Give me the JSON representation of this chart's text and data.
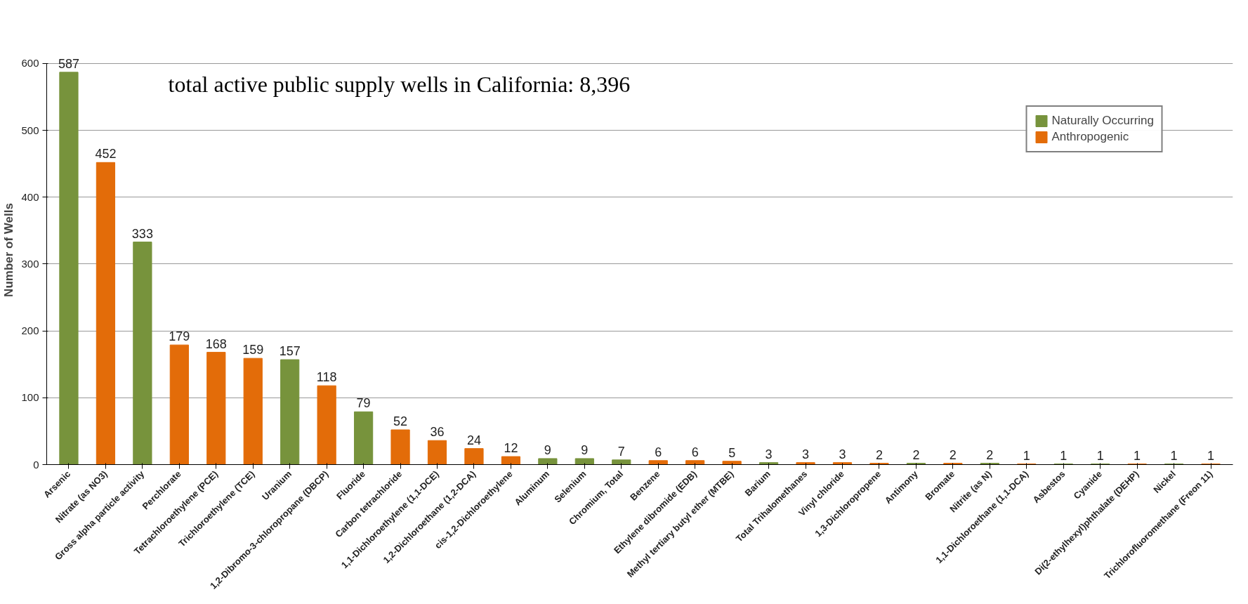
{
  "chart_data": {
    "type": "bar",
    "ylabel": "Number of Wells",
    "annotations": [
      "total active public supply wells in California: 8,396"
    ],
    "categories": [
      "Arsenic",
      "Nitrate (as NO3)",
      "Gross alpha particle activity",
      "Perchlorate",
      "Tetrachloroethylene (PCE)",
      "Trichloroethylene (TCE)",
      "Uranium",
      "1,2-Dibromo-3-chloropropane (DBCP)",
      "Fluoride",
      "Carbon tetrachloride",
      "1,1-Dichloroethylene (1,1-DCE)",
      "1,2-Dichloroethane (1,2-DCA)",
      "cis-1,2-Dichloroethylene",
      "Aluminum",
      "Selenium",
      "Chromium, Total",
      "Benzene",
      "Ethylene dibromide (EDB)",
      "Methyl tertiary butyl ether (MTBE)",
      "Barium",
      "Total Trihalomethanes",
      "Vinyl chloride",
      "1,3-Dichloropropene",
      "Antimony",
      "Bromate",
      "Nitrite (as N)",
      "1,1-Dichloroethane (1,1-DCA)",
      "Asbestos",
      "Cyanide",
      "Di(2-ethylhexyl)phthalate (DEHP)",
      "Nickel",
      "Trichlorofluoromethane (Freon 11)"
    ],
    "series": [
      {
        "name": "Naturally Occurring",
        "color": "#77933c",
        "values": [
          587,
          null,
          333,
          null,
          null,
          null,
          157,
          null,
          79,
          null,
          null,
          null,
          null,
          9,
          9,
          7,
          null,
          null,
          null,
          3,
          null,
          null,
          null,
          2,
          null,
          2,
          null,
          1,
          1,
          null,
          1,
          null
        ]
      },
      {
        "name": "Anthropogenic",
        "color": "#e36c09",
        "values": [
          null,
          452,
          null,
          179,
          168,
          159,
          null,
          118,
          null,
          52,
          36,
          24,
          12,
          null,
          null,
          null,
          6,
          6,
          5,
          null,
          3,
          3,
          2,
          null,
          2,
          null,
          1,
          null,
          null,
          1,
          null,
          1
        ]
      }
    ],
    "ylim": [
      0,
      600
    ],
    "yticks": [
      0,
      100,
      200,
      300,
      400,
      500,
      600
    ],
    "grid": "y",
    "legend": "top right",
    "data_labels": true
  }
}
